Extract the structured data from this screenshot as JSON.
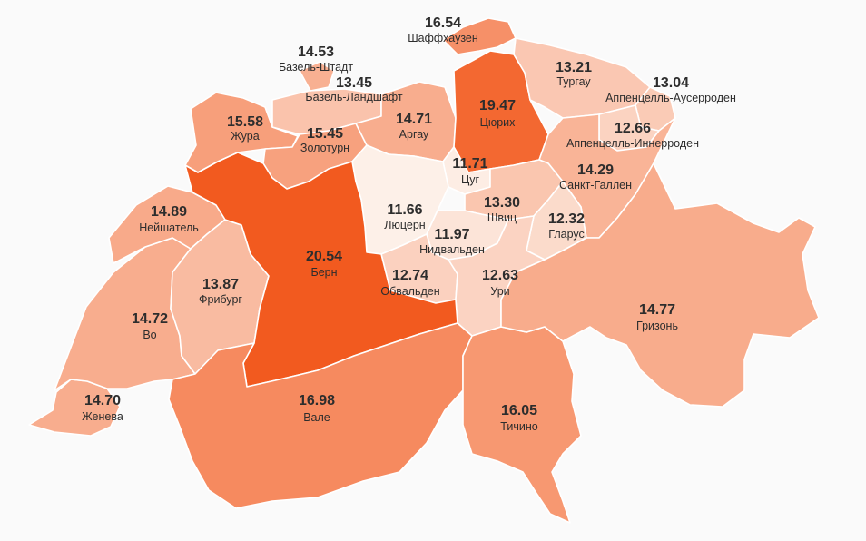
{
  "map": {
    "country": "Switzerland",
    "color_scale": {
      "low": "#fdf0e8",
      "high": "#f25a1f",
      "min_value": 11.66,
      "max_value": 20.54
    },
    "cantons": [
      {
        "id": "schaffhausen",
        "name": "Шаффхаузен",
        "value": "16.54"
      },
      {
        "id": "basel-stadt",
        "name": "Базель-Штадт",
        "value": "14.53"
      },
      {
        "id": "basel-land",
        "name": "Базель-Ландшафт",
        "value": "13.45"
      },
      {
        "id": "jura",
        "name": "Жура",
        "value": "15.58"
      },
      {
        "id": "solothurn",
        "name": "Золотурн",
        "value": "15.45"
      },
      {
        "id": "aargau",
        "name": "Аргау",
        "value": "14.71"
      },
      {
        "id": "zurich",
        "name": "Цюрих",
        "value": "19.47"
      },
      {
        "id": "thurgau",
        "name": "Тургау",
        "value": "13.21"
      },
      {
        "id": "appenzell-ar",
        "name": "Аппенцелль-Аусерроден",
        "value": "13.04"
      },
      {
        "id": "appenzell-ir",
        "name": "Аппенцелль-Иннерроден",
        "value": "12.66"
      },
      {
        "id": "st-gallen",
        "name": "Санкт-Галлен",
        "value": "14.29"
      },
      {
        "id": "zug",
        "name": "Цуг",
        "value": "11.71"
      },
      {
        "id": "neuchatel",
        "name": "Нейшатель",
        "value": "14.89"
      },
      {
        "id": "luzern",
        "name": "Люцерн",
        "value": "11.66"
      },
      {
        "id": "schwyz",
        "name": "Швиц",
        "value": "13.30"
      },
      {
        "id": "nidwalden",
        "name": "Нидвальден",
        "value": "11.97"
      },
      {
        "id": "glarus",
        "name": "Гларус",
        "value": "12.32"
      },
      {
        "id": "bern",
        "name": "Берн",
        "value": "20.54"
      },
      {
        "id": "fribourg",
        "name": "Фрибург",
        "value": "13.87"
      },
      {
        "id": "obwalden",
        "name": "Обвальден",
        "value": "12.74"
      },
      {
        "id": "uri",
        "name": "Ури",
        "value": "12.63"
      },
      {
        "id": "graubunden",
        "name": "Гризонь",
        "value": "14.77"
      },
      {
        "id": "vaud",
        "name": "Во",
        "value": "14.72"
      },
      {
        "id": "geneva",
        "name": "Женева",
        "value": "14.70"
      },
      {
        "id": "valais",
        "name": "Вале",
        "value": "16.98"
      },
      {
        "id": "ticino",
        "name": "Тичино",
        "value": "16.05"
      }
    ]
  }
}
